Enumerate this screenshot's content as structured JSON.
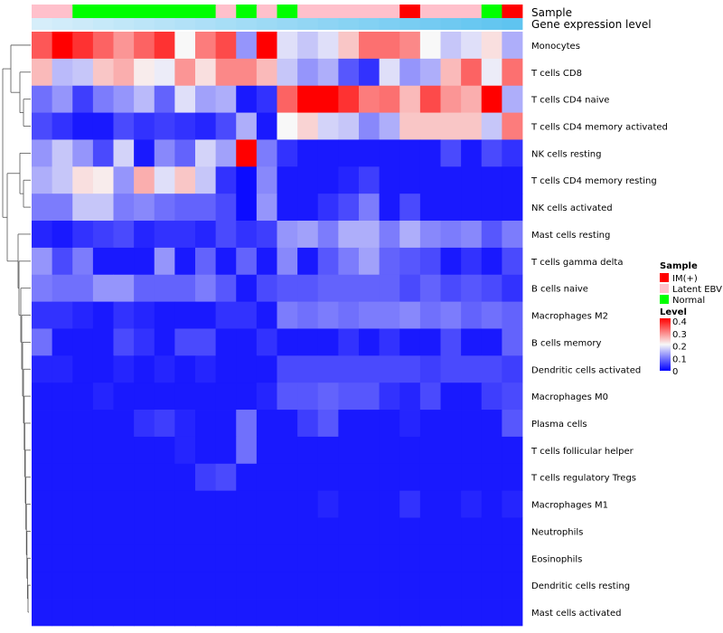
{
  "chart_data": {
    "type": "heatmap",
    "annotation_track_labels": [
      "Sample",
      "Gene expression level"
    ],
    "columns": 24,
    "sample_annotation": [
      "Latent EBV",
      "Latent EBV",
      "Normal",
      "Normal",
      "Normal",
      "Normal",
      "Normal",
      "Normal",
      "Normal",
      "Latent EBV",
      "Normal",
      "Latent EBV",
      "Normal",
      "Latent EBV",
      "Latent EBV",
      "Latent EBV",
      "Latent EBV",
      "Latent EBV",
      "IM(+)",
      "Latent EBV",
      "Latent EBV",
      "Latent EBV",
      "Normal",
      "IM(+)"
    ],
    "rows": [
      {
        "label": "Monocytes",
        "values": [
          0.33,
          0.4,
          0.36,
          0.32,
          0.28,
          0.32,
          0.36,
          0.2,
          0.3,
          0.34,
          0.12,
          0.4,
          0.18,
          0.16,
          0.18,
          0.24,
          0.31,
          0.31,
          0.29,
          0.2,
          0.16,
          0.18,
          0.22,
          0.14
        ]
      },
      {
        "label": "T cells CD8",
        "values": [
          0.25,
          0.15,
          0.16,
          0.24,
          0.26,
          0.21,
          0.19,
          0.28,
          0.22,
          0.29,
          0.29,
          0.25,
          0.16,
          0.12,
          0.14,
          0.07,
          0.04,
          0.18,
          0.12,
          0.14,
          0.25,
          0.32,
          0.19,
          0.31
        ]
      },
      {
        "label": "T cells CD4 naive",
        "values": [
          0.09,
          0.12,
          0.05,
          0.1,
          0.12,
          0.15,
          0.08,
          0.18,
          0.13,
          0.14,
          0.02,
          0.04,
          0.32,
          0.4,
          0.4,
          0.36,
          0.3,
          0.31,
          0.25,
          0.34,
          0.28,
          0.26,
          0.4,
          0.14
        ]
      },
      {
        "label": "T cells CD4 memory activated",
        "values": [
          0.06,
          0.04,
          0.02,
          0.02,
          0.06,
          0.04,
          0.05,
          0.04,
          0.03,
          0.06,
          0.14,
          0.02,
          0.2,
          0.23,
          0.17,
          0.16,
          0.11,
          0.14,
          0.24,
          0.24,
          0.24,
          0.24,
          0.16,
          0.3
        ]
      },
      {
        "label": "NK cells resting",
        "values": [
          0.12,
          0.16,
          0.12,
          0.06,
          0.17,
          0.02,
          0.11,
          0.08,
          0.17,
          0.13,
          0.4,
          0.1,
          0.04,
          0.02,
          0.02,
          0.02,
          0.02,
          0.02,
          0.02,
          0.02,
          0.06,
          0.02,
          0.06,
          0.04
        ]
      },
      {
        "label": "T cells CD4 memory resting",
        "values": [
          0.14,
          0.16,
          0.22,
          0.21,
          0.12,
          0.26,
          0.18,
          0.24,
          0.16,
          0.04,
          0.01,
          0.11,
          0.02,
          0.02,
          0.02,
          0.03,
          0.05,
          0.02,
          0.02,
          0.02,
          0.02,
          0.02,
          0.02,
          0.02
        ]
      },
      {
        "label": "NK cells activated",
        "values": [
          0.1,
          0.1,
          0.16,
          0.16,
          0.1,
          0.11,
          0.09,
          0.08,
          0.08,
          0.06,
          0.01,
          0.12,
          0.02,
          0.02,
          0.04,
          0.06,
          0.1,
          0.02,
          0.06,
          0.02,
          0.02,
          0.02,
          0.02,
          0.02
        ]
      },
      {
        "label": "Mast cells resting",
        "values": [
          0.03,
          0.02,
          0.04,
          0.05,
          0.06,
          0.03,
          0.04,
          0.04,
          0.03,
          0.06,
          0.04,
          0.05,
          0.12,
          0.13,
          0.1,
          0.14,
          0.14,
          0.1,
          0.14,
          0.11,
          0.1,
          0.11,
          0.07,
          0.1
        ]
      },
      {
        "label": "T cells gamma delta",
        "values": [
          0.12,
          0.06,
          0.1,
          0.02,
          0.02,
          0.02,
          0.12,
          0.02,
          0.08,
          0.02,
          0.08,
          0.02,
          0.11,
          0.02,
          0.07,
          0.1,
          0.13,
          0.08,
          0.07,
          0.06,
          0.02,
          0.04,
          0.02,
          0.06
        ]
      },
      {
        "label": "B cells naive",
        "values": [
          0.1,
          0.09,
          0.09,
          0.12,
          0.12,
          0.08,
          0.08,
          0.08,
          0.1,
          0.07,
          0.02,
          0.06,
          0.07,
          0.07,
          0.08,
          0.08,
          0.08,
          0.08,
          0.06,
          0.08,
          0.06,
          0.07,
          0.06,
          0.04
        ]
      },
      {
        "label": "Macrophages M2",
        "values": [
          0.04,
          0.04,
          0.03,
          0.02,
          0.04,
          0.03,
          0.02,
          0.02,
          0.02,
          0.04,
          0.04,
          0.02,
          0.1,
          0.09,
          0.1,
          0.09,
          0.1,
          0.1,
          0.11,
          0.09,
          0.1,
          0.08,
          0.09,
          0.08
        ]
      },
      {
        "label": "B cells memory",
        "values": [
          0.09,
          0.02,
          0.02,
          0.02,
          0.06,
          0.04,
          0.02,
          0.06,
          0.06,
          0.02,
          0.02,
          0.04,
          0.02,
          0.02,
          0.02,
          0.04,
          0.02,
          0.04,
          0.02,
          0.02,
          0.06,
          0.02,
          0.02,
          0.08
        ]
      },
      {
        "label": "Dendritic cells activated",
        "values": [
          0.03,
          0.03,
          0.02,
          0.02,
          0.03,
          0.02,
          0.03,
          0.02,
          0.03,
          0.02,
          0.02,
          0.02,
          0.06,
          0.06,
          0.06,
          0.06,
          0.06,
          0.06,
          0.06,
          0.05,
          0.06,
          0.06,
          0.06,
          0.05
        ]
      },
      {
        "label": "Macrophages M0",
        "values": [
          0.02,
          0.02,
          0.02,
          0.03,
          0.02,
          0.02,
          0.02,
          0.02,
          0.02,
          0.02,
          0.02,
          0.03,
          0.07,
          0.07,
          0.08,
          0.07,
          0.07,
          0.04,
          0.03,
          0.06,
          0.02,
          0.02,
          0.05,
          0.06
        ]
      },
      {
        "label": "Plasma cells",
        "values": [
          0.02,
          0.02,
          0.02,
          0.02,
          0.02,
          0.04,
          0.05,
          0.03,
          0.02,
          0.02,
          0.09,
          0.02,
          0.02,
          0.05,
          0.07,
          0.02,
          0.02,
          0.02,
          0.03,
          0.02,
          0.02,
          0.02,
          0.02,
          0.07
        ]
      },
      {
        "label": "T cells follicular helper",
        "values": [
          0.02,
          0.02,
          0.02,
          0.02,
          0.02,
          0.02,
          0.02,
          0.03,
          0.02,
          0.02,
          0.09,
          0.02,
          0.02,
          0.02,
          0.02,
          0.02,
          0.02,
          0.02,
          0.02,
          0.02,
          0.02,
          0.02,
          0.02,
          0.02
        ]
      },
      {
        "label": "T cells regulatory  Tregs",
        "values": [
          0.02,
          0.02,
          0.02,
          0.02,
          0.02,
          0.02,
          0.02,
          0.02,
          0.05,
          0.06,
          0.02,
          0.02,
          0.02,
          0.02,
          0.02,
          0.02,
          0.02,
          0.02,
          0.02,
          0.02,
          0.02,
          0.02,
          0.02,
          0.02
        ]
      },
      {
        "label": "Macrophages M1",
        "values": [
          0.02,
          0.02,
          0.02,
          0.02,
          0.02,
          0.02,
          0.02,
          0.02,
          0.02,
          0.02,
          0.02,
          0.02,
          0.02,
          0.02,
          0.03,
          0.02,
          0.02,
          0.02,
          0.04,
          0.02,
          0.02,
          0.03,
          0.02,
          0.03
        ]
      },
      {
        "label": "Neutrophils",
        "values": [
          0.02,
          0.02,
          0.02,
          0.02,
          0.02,
          0.02,
          0.02,
          0.02,
          0.02,
          0.02,
          0.02,
          0.02,
          0.02,
          0.02,
          0.02,
          0.02,
          0.02,
          0.02,
          0.02,
          0.02,
          0.02,
          0.02,
          0.02,
          0.02
        ]
      },
      {
        "label": "Eosinophils",
        "values": [
          0.02,
          0.02,
          0.02,
          0.02,
          0.02,
          0.02,
          0.02,
          0.02,
          0.02,
          0.02,
          0.02,
          0.02,
          0.02,
          0.02,
          0.02,
          0.02,
          0.02,
          0.02,
          0.02,
          0.02,
          0.02,
          0.02,
          0.02,
          0.02
        ]
      },
      {
        "label": "Dendritic cells resting",
        "values": [
          0.02,
          0.02,
          0.02,
          0.02,
          0.02,
          0.02,
          0.02,
          0.02,
          0.02,
          0.02,
          0.02,
          0.02,
          0.02,
          0.02,
          0.02,
          0.02,
          0.02,
          0.02,
          0.02,
          0.02,
          0.02,
          0.02,
          0.02,
          0.02
        ]
      },
      {
        "label": "Mast cells activated",
        "values": [
          0.02,
          0.02,
          0.02,
          0.02,
          0.02,
          0.02,
          0.02,
          0.02,
          0.02,
          0.02,
          0.02,
          0.02,
          0.02,
          0.02,
          0.02,
          0.02,
          0.02,
          0.02,
          0.02,
          0.02,
          0.02,
          0.02,
          0.02,
          0.02
        ]
      }
    ],
    "color_scale": {
      "min": 0,
      "mid": 0.2,
      "max": 0.4,
      "low_color": "#0000ff",
      "mid_color": "#f8f8f8",
      "high_color": "#ff0000"
    },
    "legend": {
      "placement": "right",
      "sample_title": "Sample",
      "sample_entries": [
        {
          "label": "IM(+)",
          "color": "#ff0000"
        },
        {
          "label": "Latent EBV",
          "color": "#ffc0cb"
        },
        {
          "label": "Normal",
          "color": "#00ff00"
        }
      ],
      "level_title": "Level",
      "level_ticks": [
        "0.4",
        "0.3",
        "0.2",
        "0.1",
        "0"
      ]
    }
  }
}
